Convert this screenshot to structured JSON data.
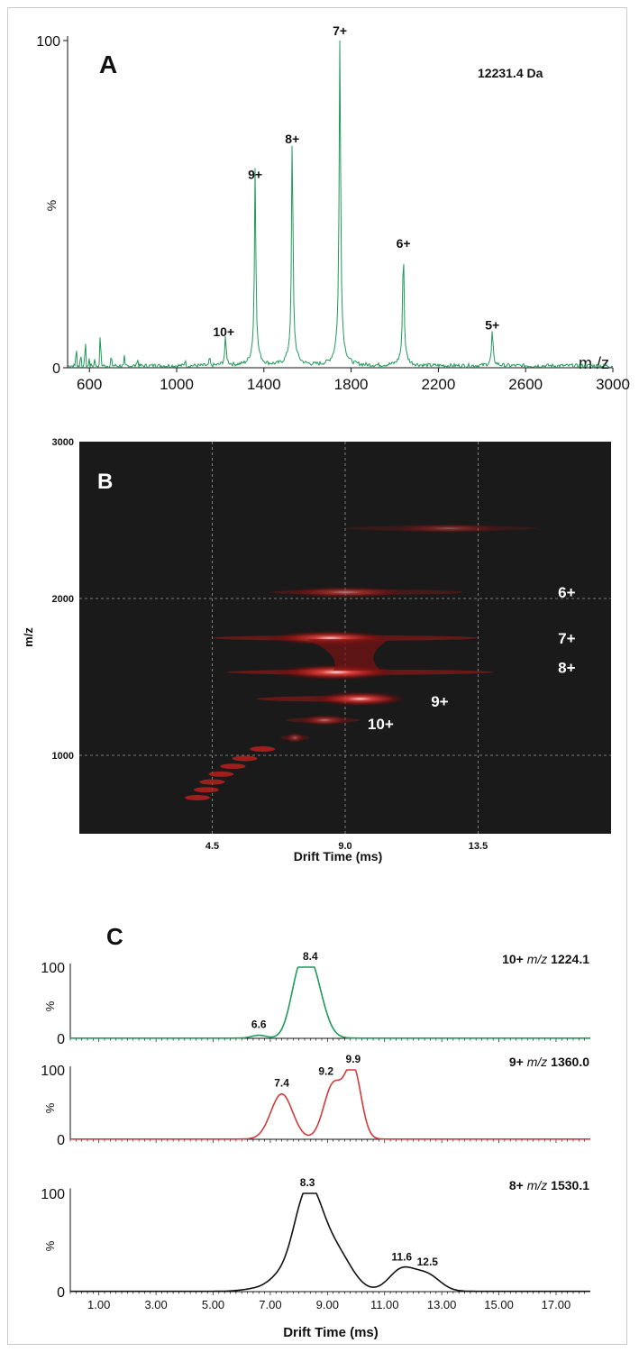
{
  "panels": [
    {
      "label": "A",
      "note": "12231.4 Da",
      "chart_data": {
        "type": "line",
        "x_label": "m /z",
        "y_label": "%",
        "xlim": [
          500,
          3000
        ],
        "ylim": [
          0,
          100
        ],
        "x_ticks": [
          600,
          1000,
          1400,
          1800,
          2200,
          2600,
          3000
        ],
        "y_ticks": [
          0,
          100
        ],
        "peaks": [
          {
            "label": "10+",
            "mz": 1224.1,
            "intensity": 8
          },
          {
            "label": "9+",
            "mz": 1360.0,
            "intensity": 56
          },
          {
            "label": "8+",
            "mz": 1530.1,
            "intensity": 67
          },
          {
            "label": "7+",
            "mz": 1748.5,
            "intensity": 100
          },
          {
            "label": "6+",
            "mz": 2039.5,
            "intensity": 35
          },
          {
            "label": "5+",
            "mz": 2447.3,
            "intensity": 10
          }
        ],
        "color": "#1f9a5a"
      }
    },
    {
      "label": "B",
      "chart_data": {
        "type": "heatmap",
        "x_label": "Drift Time (ms)",
        "y_label": "m/z",
        "xlim": [
          0,
          18
        ],
        "ylim": [
          500,
          3000
        ],
        "x_ticks": [
          4.5,
          9.0,
          13.5
        ],
        "y_ticks": [
          1000,
          2000,
          3000
        ],
        "background": "#1a1a1a",
        "bands": [
          {
            "mz": 2447,
            "dt_start": 9.0,
            "dt_end": 15.5,
            "center": 12.5,
            "intensity": 0.35
          },
          {
            "mz": 2040,
            "dt_start": 6.5,
            "dt_end": 13.0,
            "center": 9.0,
            "intensity": 0.55
          },
          {
            "mz": 1748,
            "dt_start": 4.5,
            "dt_end": 13.5,
            "center": 8.5,
            "intensity": 0.9
          },
          {
            "mz": 1530,
            "dt_start": 5.0,
            "dt_end": 14.0,
            "center": 8.7,
            "intensity": 1.0
          },
          {
            "mz": 1360,
            "dt_start": 6.0,
            "dt_end": 10.6,
            "center": 9.5,
            "intensity": 0.9
          },
          {
            "mz": 1224,
            "dt_start": 7.0,
            "dt_end": 9.5,
            "center": 8.3,
            "intensity": 0.55
          },
          {
            "mz": 1112,
            "dt_start": 6.8,
            "dt_end": 7.8,
            "center": 7.3,
            "intensity": 0.45
          }
        ],
        "tail": [
          {
            "mz": 1040,
            "dt": 6.2
          },
          {
            "mz": 980,
            "dt": 5.6
          },
          {
            "mz": 930,
            "dt": 5.2
          },
          {
            "mz": 880,
            "dt": 4.8
          },
          {
            "mz": 830,
            "dt": 4.5
          },
          {
            "mz": 780,
            "dt": 4.3
          },
          {
            "mz": 730,
            "dt": 4.0
          }
        ],
        "charge_labels": [
          {
            "label": "6+",
            "mz": 2040,
            "dt": 16.5
          },
          {
            "label": "7+",
            "mz": 1748,
            "dt": 16.5
          },
          {
            "label": "8+",
            "mz": 1560,
            "dt": 16.5
          },
          {
            "label": "9+",
            "mz": 1345,
            "dt": 12.2
          },
          {
            "label": "10+",
            "mz": 1200,
            "dt": 10.2
          }
        ]
      }
    },
    {
      "label": "C",
      "chart_data": {
        "type": "line",
        "x_label": "Drift Time (ms)",
        "y_label": "%",
        "xlim": [
          0,
          18.2
        ],
        "ylim": [
          0,
          100
        ],
        "x_ticks": [
          1.0,
          3.0,
          5.0,
          7.0,
          9.0,
          11.0,
          13.0,
          15.0,
          17.0
        ],
        "x_tick_labels": [
          "1.00",
          "3.00",
          "5.00",
          "7.00",
          "9.00",
          "11.00",
          "13.00",
          "15.00",
          "17.00"
        ],
        "y_ticks": [
          0,
          100
        ],
        "series": [
          {
            "name": "10+ m/z 1224.1",
            "charge": "10+",
            "mz_prefix": "m/z",
            "mz_value": "1224.1",
            "color": "#1f9a5a",
            "peaks": [
              {
                "x": 6.6,
                "height": 4,
                "width": 0.25,
                "label": "6.6"
              },
              {
                "x": 8.4,
                "height": 100,
                "width": 0.4,
                "label": "8.4"
              },
              {
                "x": 7.95,
                "height": 45,
                "width": 0.3
              }
            ]
          },
          {
            "name": "9+ m/z 1360.0",
            "charge": "9+",
            "mz_prefix": "m/z",
            "mz_value": "1360.0",
            "color": "#d43a3a",
            "peaks": [
              {
                "x": 7.4,
                "height": 65,
                "width": 0.38,
                "label": "7.4"
              },
              {
                "x": 9.2,
                "height": 78,
                "width": 0.33,
                "label": "9.2"
              },
              {
                "x": 9.9,
                "height": 100,
                "width": 0.28,
                "label": "9.9"
              }
            ]
          },
          {
            "name": "8+ m/z 1530.1",
            "charge": "8+",
            "mz_prefix": "m/z",
            "mz_value": "1530.1",
            "color": "#111111",
            "peaks": [
              {
                "x": 6.6,
                "height": 3,
                "width": 0.5
              },
              {
                "x": 7.2,
                "height": 8,
                "width": 0.35
              },
              {
                "x": 8.3,
                "height": 100,
                "width": 0.5,
                "label": "8.3"
              },
              {
                "x": 9.3,
                "height": 38,
                "width": 0.55
              },
              {
                "x": 11.6,
                "height": 22,
                "width": 0.45,
                "label": "11.6"
              },
              {
                "x": 12.5,
                "height": 16,
                "width": 0.45,
                "label": "12.5"
              }
            ]
          }
        ]
      }
    }
  ]
}
